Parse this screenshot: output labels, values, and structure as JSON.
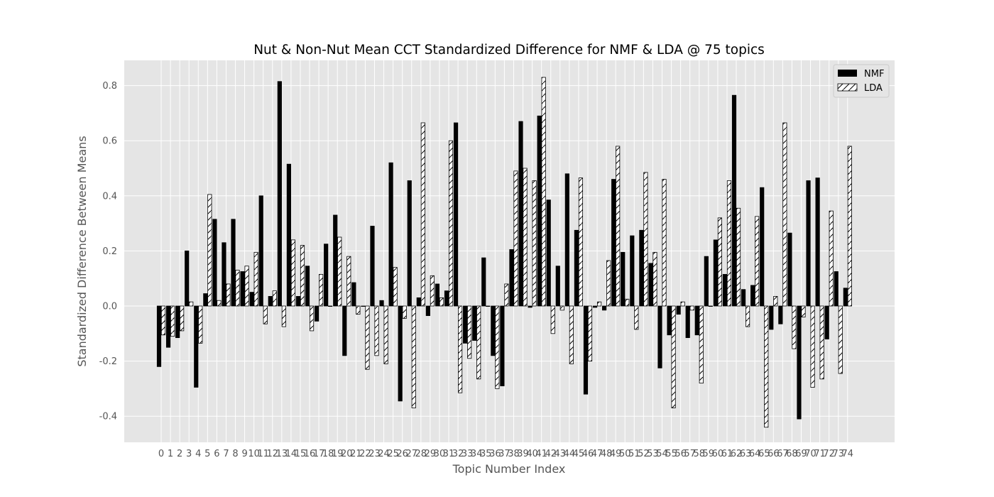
{
  "chart_data": {
    "type": "bar",
    "title": "Nut & Non-Nut Mean CCT Standardized Difference for NMF & LDA @ 75 topics",
    "xlabel": "Topic Number Index",
    "ylabel": "Standardized Difference Between Means",
    "ylim": [
      -0.5,
      0.9
    ],
    "yticks": [
      "-0.4",
      "-0.2",
      "0.0",
      "0.2",
      "0.4",
      "0.6",
      "0.8"
    ],
    "grid": true,
    "legend_position": "top-right",
    "categories": [
      "0",
      "1",
      "2",
      "3",
      "4",
      "5",
      "6",
      "7",
      "8",
      "9",
      "10",
      "11",
      "12",
      "13",
      "14",
      "15",
      "16",
      "17",
      "18",
      "19",
      "20",
      "21",
      "22",
      "23",
      "24",
      "25",
      "26",
      "27",
      "28",
      "29",
      "30",
      "31",
      "32",
      "33",
      "34",
      "35",
      "36",
      "37",
      "38",
      "39",
      "40",
      "41",
      "42",
      "43",
      "44",
      "45",
      "46",
      "47",
      "48",
      "49",
      "50",
      "51",
      "52",
      "53",
      "54",
      "55",
      "56",
      "57",
      "58",
      "59",
      "60",
      "61",
      "62",
      "63",
      "64",
      "65",
      "66",
      "67",
      "68",
      "69",
      "70",
      "71",
      "72",
      "73",
      "74"
    ],
    "series": [
      {
        "name": "NMF",
        "fill": "#000000",
        "hatch": false,
        "values": [
          -0.22,
          -0.15,
          -0.115,
          0.2,
          -0.295,
          0.045,
          0.315,
          0.23,
          0.315,
          0.125,
          0.05,
          0.4,
          0.035,
          0.815,
          0.515,
          0.035,
          0.145,
          -0.055,
          0.225,
          0.33,
          -0.18,
          0.085,
          0.0,
          0.29,
          0.02,
          0.52,
          -0.345,
          0.455,
          0.03,
          -0.035,
          0.08,
          0.055,
          0.665,
          -0.135,
          -0.125,
          0.175,
          -0.18,
          -0.29,
          0.205,
          0.67,
          -0.005,
          0.69,
          0.385,
          0.145,
          0.48,
          0.275,
          -0.32,
          -0.005,
          -0.015,
          0.46,
          0.195,
          0.255,
          0.275,
          0.155,
          -0.225,
          -0.105,
          -0.03,
          -0.115,
          -0.105,
          0.18,
          0.24,
          0.115,
          0.765,
          0.06,
          0.075,
          0.43,
          -0.085,
          -0.065,
          0.265,
          -0.41,
          0.455,
          0.465,
          -0.12,
          0.125,
          0.065
        ]
      },
      {
        "name": "LDA",
        "fill": "#ffffff",
        "hatch": true,
        "values": [
          -0.105,
          -0.11,
          -0.09,
          0.015,
          -0.135,
          0.405,
          0.02,
          0.08,
          0.13,
          0.145,
          0.195,
          -0.065,
          0.055,
          -0.075,
          0.24,
          0.22,
          -0.09,
          0.115,
          0.0,
          0.25,
          0.18,
          -0.03,
          -0.23,
          -0.18,
          -0.21,
          0.14,
          -0.045,
          -0.37,
          0.665,
          0.11,
          0.03,
          0.6,
          -0.315,
          -0.19,
          -0.265,
          0.0,
          -0.3,
          0.08,
          0.49,
          0.5,
          0.455,
          0.83,
          -0.1,
          -0.015,
          -0.21,
          0.465,
          -0.2,
          0.015,
          0.165,
          0.58,
          0.025,
          -0.085,
          0.485,
          0.195,
          0.46,
          -0.37,
          0.015,
          -0.015,
          -0.28,
          0.0,
          0.32,
          0.455,
          0.355,
          -0.075,
          0.325,
          -0.44,
          0.035,
          0.665,
          -0.155,
          -0.04,
          -0.295,
          -0.265,
          0.345,
          -0.245,
          0.58
        ]
      }
    ]
  }
}
